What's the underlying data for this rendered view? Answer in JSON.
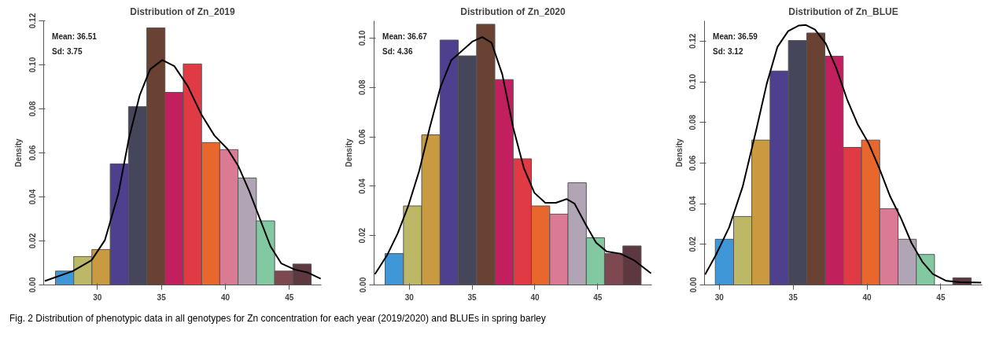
{
  "chart_data": [
    {
      "type": "histogram",
      "title": "Distribution of Zn_2019",
      "ylabel": "Density",
      "annotations": [
        "Mean: 36.51",
        "Sd: 3.75"
      ],
      "bins": [
        26.72,
        28.15,
        29.57,
        31.0,
        32.43,
        33.86,
        35.28,
        36.71,
        38.14,
        39.56,
        40.99,
        42.42,
        43.85,
        45.27,
        46.7
      ],
      "values": [
        0.0063,
        0.0129,
        0.0161,
        0.055,
        0.081,
        0.1168,
        0.0875,
        0.1004,
        0.0647,
        0.0615,
        0.0486,
        0.0291,
        0.0063,
        0.0095
      ],
      "colors": [
        "#3f97d8",
        "#bdb868",
        "#c99a3f",
        "#4f3f8f",
        "#454659",
        "#6a4233",
        "#c21f5f",
        "#e03a45",
        "#e7672c",
        "#db7a95",
        "#b1a5b5",
        "#82c9a1",
        "#7d4850",
        "#5e3840"
      ],
      "series": [
        {
          "type": "line",
          "color": "#000000",
          "x": [
            25.89,
            28.08,
            29.54,
            30.58,
            31.63,
            32.46,
            33.3,
            34.12,
            35.07,
            36.01,
            37.06,
            38.1,
            39.14,
            40.19,
            41.02,
            41.86,
            42.69,
            43.53,
            44.36,
            45.41,
            46.45,
            47.45
          ],
          "values": [
            0.0018,
            0.0063,
            0.0112,
            0.0203,
            0.0413,
            0.0665,
            0.0861,
            0.098,
            0.1022,
            0.0994,
            0.0903,
            0.0777,
            0.0679,
            0.0616,
            0.0539,
            0.0427,
            0.0301,
            0.0175,
            0.0098,
            0.007,
            0.0056,
            0.0028
          ]
        }
      ],
      "xlim": [
        25.8,
        47.5
      ],
      "xticks": [
        30,
        35,
        40,
        45
      ],
      "ylim": [
        0,
        0.12
      ],
      "yticks": [
        {
          "value": 0,
          "label": "0.00"
        },
        {
          "value": 0.02,
          "label": "0.02"
        },
        {
          "value": 0.04,
          "label": "0.04"
        },
        {
          "value": 0.06,
          "label": "0.06"
        },
        {
          "value": 0.08,
          "label": "0.08"
        },
        {
          "value": 0.1,
          "label": "0.10"
        },
        {
          "value": 0.12,
          "label": "0.12"
        }
      ]
    },
    {
      "type": "histogram",
      "title": "Distribution of Zn_2020",
      "ylabel": "Density",
      "annotations": [
        "Mean: 36.67",
        "Sd: 4.36"
      ],
      "bins": [
        28.08,
        29.54,
        30.99,
        32.45,
        33.9,
        35.36,
        36.81,
        38.27,
        39.72,
        41.18,
        42.63,
        44.09,
        45.54,
        47.0,
        48.45
      ],
      "values": [
        0.0127,
        0.032,
        0.0608,
        0.0992,
        0.0928,
        0.1056,
        0.0832,
        0.0511,
        0.032,
        0.0287,
        0.0414,
        0.0191,
        0.0127,
        0.0158
      ],
      "colors": [
        "#3f97d8",
        "#bdb868",
        "#c99a3f",
        "#4f3f8f",
        "#454659",
        "#6a4233",
        "#c21f5f",
        "#e03a45",
        "#e7672c",
        "#db7a95",
        "#b1a5b5",
        "#82c9a1",
        "#7d4850",
        "#5e3840"
      ],
      "series": [
        {
          "type": "line",
          "color": "#000000",
          "x": [
            27.27,
            28.23,
            29.08,
            29.94,
            30.79,
            31.64,
            32.5,
            33.35,
            34.2,
            35.05,
            35.8,
            36.55,
            37.4,
            38.26,
            39.11,
            39.96,
            40.82,
            41.67,
            42.52,
            43.16,
            44.02,
            44.87,
            45.72,
            46.79,
            47.86,
            49.24
          ],
          "values": [
            0.0044,
            0.012,
            0.0209,
            0.0323,
            0.0462,
            0.0639,
            0.0804,
            0.0911,
            0.0949,
            0.0987,
            0.1004,
            0.0981,
            0.0854,
            0.0639,
            0.0475,
            0.0373,
            0.0333,
            0.0333,
            0.0348,
            0.0329,
            0.0247,
            0.0171,
            0.0135,
            0.0127,
            0.0101,
            0.0047
          ]
        }
      ],
      "xlim": [
        27.2,
        49.3
      ],
      "xticks": [
        30,
        35,
        40,
        45
      ],
      "ylim": [
        0,
        0.107
      ],
      "yticks": [
        {
          "value": 0,
          "label": "0.00"
        },
        {
          "value": 0.02,
          "label": "0.02"
        },
        {
          "value": 0.04,
          "label": "0.04"
        },
        {
          "value": 0.06,
          "label": "0.06"
        },
        {
          "value": 0.08,
          "label": "0.08"
        },
        {
          "value": 0.1,
          "label": "0.10"
        }
      ]
    },
    {
      "type": "histogram",
      "title": "Distribution of Zn_BLUE",
      "ylabel": "Density",
      "annotations": [
        "Mean: 36.59",
        "Sd: 3.12"
      ],
      "bins": [
        29.73,
        30.97,
        32.2,
        33.44,
        34.68,
        35.92,
        37.15,
        38.39,
        39.63,
        40.86,
        42.1,
        43.34,
        44.57,
        45.81,
        47.05
      ],
      "values": [
        0.0225,
        0.0337,
        0.0713,
        0.1053,
        0.1203,
        0.124,
        0.1126,
        0.0677,
        0.0713,
        0.0375,
        0.0225,
        0.015,
        0,
        0.0035
      ],
      "colors": [
        "#3f97d8",
        "#bdb868",
        "#c99a3f",
        "#4f3f8f",
        "#454659",
        "#6a4233",
        "#c21f5f",
        "#e03a45",
        "#e7672c",
        "#db7a95",
        "#b1a5b5",
        "#82c9a1",
        "#7d4850",
        "#5e3840"
      ],
      "series": [
        {
          "type": "line",
          "color": "#000000",
          "x": [
            29.04,
            29.76,
            30.67,
            31.58,
            32.49,
            33.21,
            33.94,
            34.66,
            35.39,
            35.84,
            36.48,
            37.21,
            37.93,
            38.66,
            39.38,
            40.11,
            40.83,
            41.56,
            42.29,
            43.01,
            43.74,
            44.46,
            45.37,
            46.28,
            47.73
          ],
          "values": [
            0.0051,
            0.0146,
            0.0284,
            0.0483,
            0.0759,
            0.0989,
            0.1172,
            0.1249,
            0.1277,
            0.128,
            0.1257,
            0.1188,
            0.1065,
            0.0912,
            0.0789,
            0.0697,
            0.0575,
            0.0437,
            0.033,
            0.0207,
            0.0115,
            0.0054,
            0.002,
            0.0014,
            0.0012
          ]
        }
      ],
      "xlim": [
        29.0,
        47.8
      ],
      "xticks": [
        30,
        35,
        40,
        45
      ],
      "ylim": [
        0,
        0.13
      ],
      "yticks": [
        {
          "value": 0,
          "label": "0.00"
        },
        {
          "value": 0.02,
          "label": "0.02"
        },
        {
          "value": 0.04,
          "label": "0.04"
        },
        {
          "value": 0.06,
          "label": "0.06"
        },
        {
          "value": 0.08,
          "label": "0.08"
        },
        {
          "value": 0.1,
          "label": "0.10"
        },
        {
          "value": 0.12,
          "label": "0.12"
        }
      ]
    },
    {
      "type": "other",
      "annotations": [
        "Fig. 2  Distribution of phenotypic data in all genotypes for Zn concentration for each year (2019/2020) and BLUEs in spring barley"
      ]
    }
  ]
}
